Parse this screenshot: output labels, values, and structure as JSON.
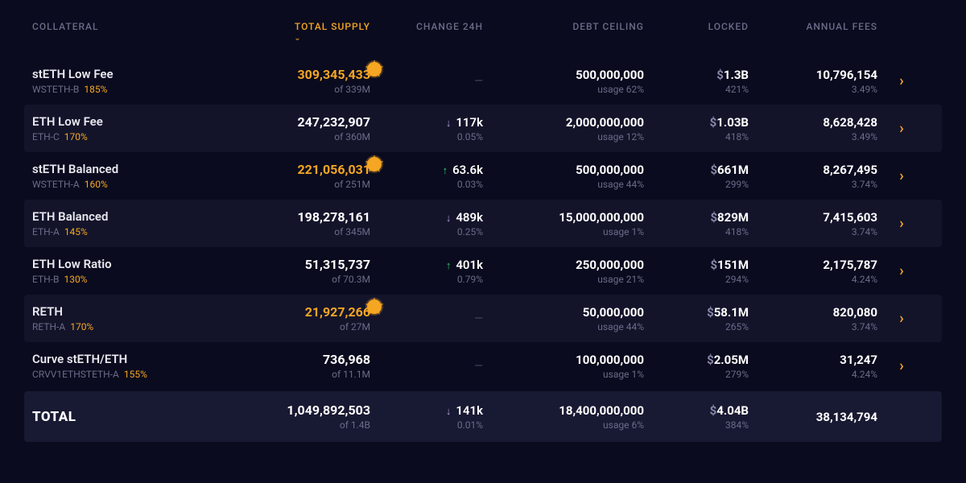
{
  "colors": {
    "background": "#0a0b1e",
    "row_alt": "rgba(30, 32, 58, 0.45)",
    "row_total": "rgba(30, 32, 58, 0.7)",
    "text_primary": "#e8e8f0",
    "text_muted": "#6b6b8a",
    "accent": "#f5a623",
    "up": "#2ecc71",
    "down": "#b19cd9",
    "dollar": "#8888a8"
  },
  "headers": {
    "collateral": "COLLATERAL",
    "total_supply": "TOTAL SUPPLY",
    "change_24h": "CHANGE 24H",
    "debt_ceiling": "DEBT CEILING",
    "locked": "LOCKED",
    "annual_fees": "ANNUAL FEES",
    "sorted_column": "total_supply",
    "sort_direction": "desc"
  },
  "rows": [
    {
      "name": "stETH Low Fee",
      "symbol": "WSTETH-B",
      "ratio": "185%",
      "supply": "309,345,433",
      "supply_highlight": true,
      "supply_badge": true,
      "supply_of": "of 339M",
      "change_dir": "none",
      "change_val": "",
      "change_pct": "",
      "debt": "500,000,000",
      "debt_usage": "usage 62%",
      "locked": "1.3B",
      "locked_pct": "421%",
      "fees": "10,796,154",
      "fees_pct": "3.49%"
    },
    {
      "name": "ETH Low Fee",
      "symbol": "ETH-C",
      "ratio": "170%",
      "supply": "247,232,907",
      "supply_highlight": false,
      "supply_badge": false,
      "supply_of": "of 360M",
      "change_dir": "down",
      "change_val": "117k",
      "change_pct": "0.05%",
      "debt": "2,000,000,000",
      "debt_usage": "usage 12%",
      "locked": "1.03B",
      "locked_pct": "418%",
      "fees": "8,628,428",
      "fees_pct": "3.49%"
    },
    {
      "name": "stETH Balanced",
      "symbol": "WSTETH-A",
      "ratio": "160%",
      "supply": "221,056,031",
      "supply_highlight": true,
      "supply_badge": true,
      "supply_of": "of 251M",
      "change_dir": "up",
      "change_val": "63.6k",
      "change_pct": "0.03%",
      "debt": "500,000,000",
      "debt_usage": "usage 44%",
      "locked": "661M",
      "locked_pct": "299%",
      "fees": "8,267,495",
      "fees_pct": "3.74%"
    },
    {
      "name": "ETH Balanced",
      "symbol": "ETH-A",
      "ratio": "145%",
      "supply": "198,278,161",
      "supply_highlight": false,
      "supply_badge": false,
      "supply_of": "of 345M",
      "change_dir": "down",
      "change_val": "489k",
      "change_pct": "0.25%",
      "debt": "15,000,000,000",
      "debt_usage": "usage 1%",
      "locked": "829M",
      "locked_pct": "418%",
      "fees": "7,415,603",
      "fees_pct": "3.74%"
    },
    {
      "name": "ETH Low Ratio",
      "symbol": "ETH-B",
      "ratio": "130%",
      "supply": "51,315,737",
      "supply_highlight": false,
      "supply_badge": false,
      "supply_of": "of 70.3M",
      "change_dir": "up",
      "change_val": "401k",
      "change_pct": "0.79%",
      "debt": "250,000,000",
      "debt_usage": "usage 21%",
      "locked": "151M",
      "locked_pct": "294%",
      "fees": "2,175,787",
      "fees_pct": "4.24%"
    },
    {
      "name": "RETH",
      "symbol": "RETH-A",
      "ratio": "170%",
      "supply": "21,927,266",
      "supply_highlight": true,
      "supply_badge": true,
      "supply_of": "of 27M",
      "change_dir": "none",
      "change_val": "",
      "change_pct": "",
      "debt": "50,000,000",
      "debt_usage": "usage 44%",
      "locked": "58.1M",
      "locked_pct": "265%",
      "fees": "820,080",
      "fees_pct": "3.74%"
    },
    {
      "name": "Curve stETH/ETH",
      "symbol": "CRVV1ETHSTETH-A",
      "ratio": "155%",
      "supply": "736,968",
      "supply_highlight": false,
      "supply_badge": false,
      "supply_of": "of 11.1M",
      "change_dir": "none",
      "change_val": "",
      "change_pct": "",
      "debt": "100,000,000",
      "debt_usage": "usage 1%",
      "locked": "2.05M",
      "locked_pct": "279%",
      "fees": "31,247",
      "fees_pct": "4.24%"
    }
  ],
  "total": {
    "label": "TOTAL",
    "supply": "1,049,892,503",
    "supply_of": "of 1.4B",
    "change_dir": "down",
    "change_val": "141k",
    "change_pct": "0.01%",
    "debt": "18,400,000,000",
    "debt_usage": "usage 6%",
    "locked": "4.04B",
    "locked_pct": "384%",
    "fees": "38,134,794"
  }
}
